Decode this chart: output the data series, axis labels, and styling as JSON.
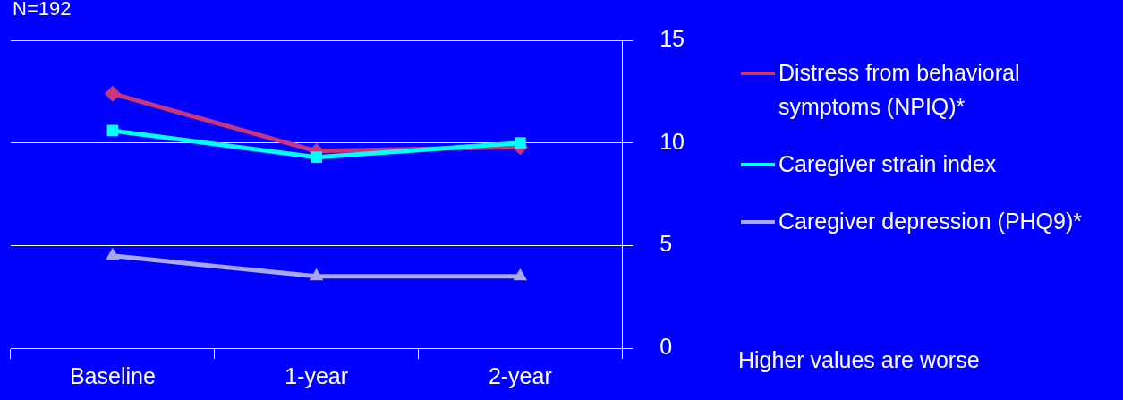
{
  "chart_data": {
    "type": "line",
    "title": "N=192",
    "categories": [
      "Baseline",
      "1-year",
      "2-year"
    ],
    "series": [
      {
        "name": "Distress from behavioral symptoms (NPIQ)*",
        "color": "#c8377a",
        "marker": "diamond",
        "values": [
          12.4,
          9.6,
          9.8
        ]
      },
      {
        "name": "Caregiver strain index",
        "color": "#00ffff",
        "marker": "square",
        "values": [
          10.6,
          9.3,
          10.0
        ]
      },
      {
        "name": "Caregiver depression (PHQ9)*",
        "color": "#a8a8f0",
        "marker": "triangle",
        "values": [
          4.5,
          3.5,
          3.5
        ]
      }
    ],
    "ylim": [
      0,
      15
    ],
    "yticks": [
      0,
      5,
      10,
      15
    ],
    "grid": "y",
    "legend": "right",
    "annotations": [
      "Higher values are worse"
    ]
  }
}
